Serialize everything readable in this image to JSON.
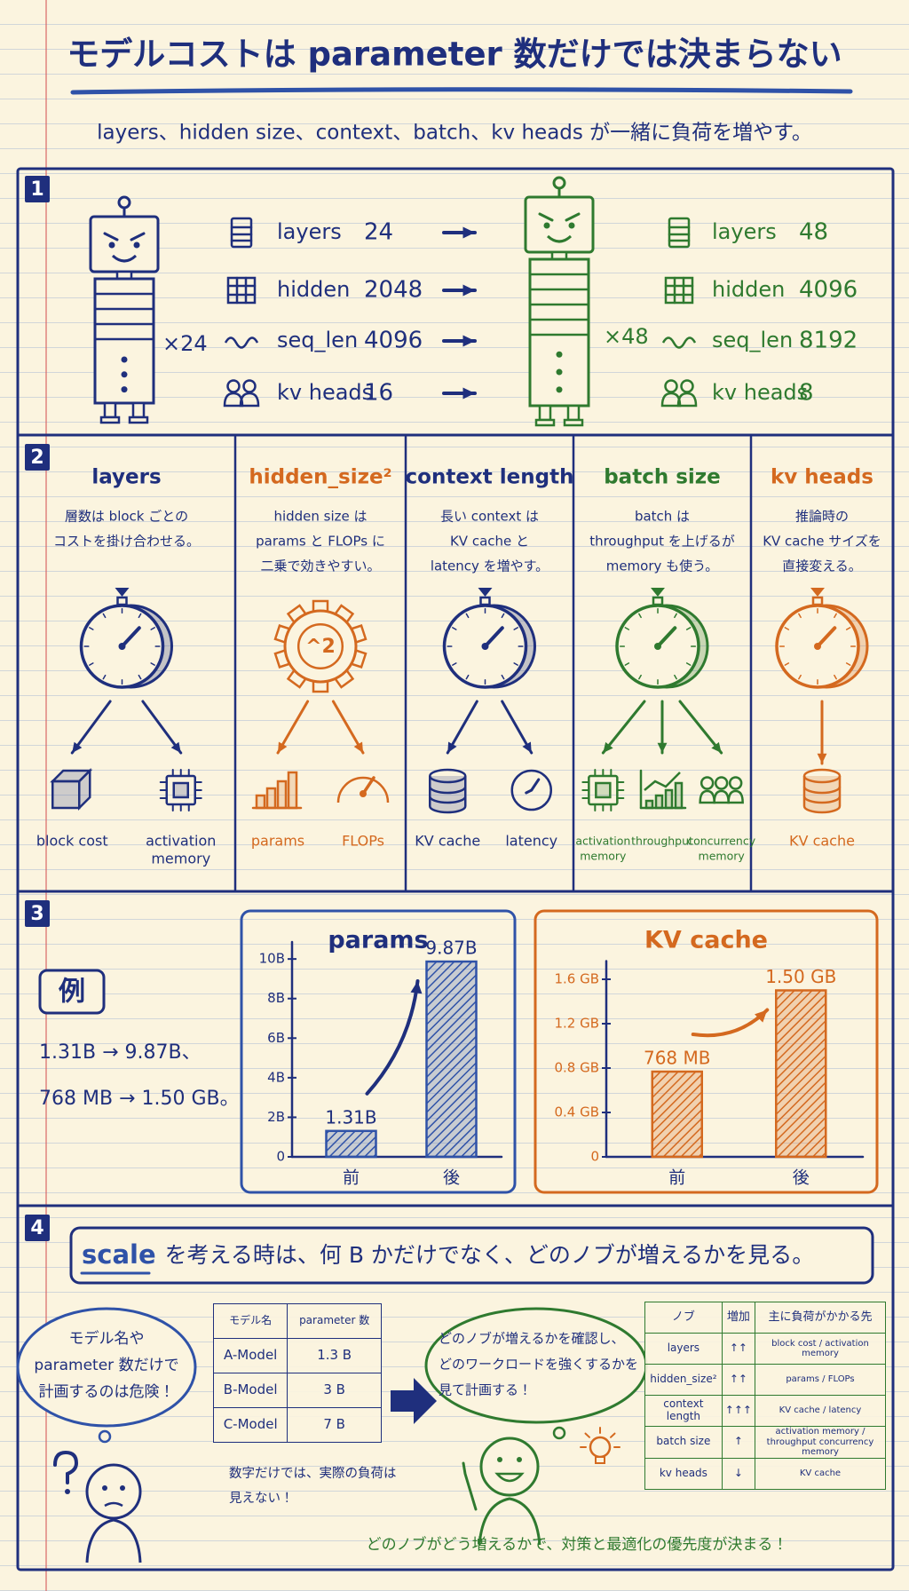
{
  "header": {
    "title": "モデルコストは parameter 数だけでは決まらない",
    "subtitle": "layers、hidden size、context、batch、kv heads が一緒に負荷を増やす。"
  },
  "sections": [
    {
      "number": "1",
      "before": {
        "color": "#1f2f7d",
        "multiplier": "×24",
        "rows": [
          [
            "layers",
            24
          ],
          [
            "hidden",
            2048
          ],
          [
            "seq_len",
            4096
          ],
          [
            "kv heads",
            16
          ]
        ]
      },
      "after": {
        "color": "#2f7a2f",
        "multiplier": "×48",
        "rows": [
          [
            "layers",
            48
          ],
          [
            "hidden",
            4096
          ],
          [
            "seq_len",
            8192
          ],
          [
            "kv heads",
            8
          ]
        ]
      }
    },
    {
      "number": "2",
      "columns": [
        {
          "title": "layers",
          "color": "#1f2f7d",
          "description": [
            "層数は block ごとの",
            "コストを掛け合わせる。"
          ],
          "items": [
            [
              "block cost"
            ],
            [
              "activation",
              "memory"
            ]
          ]
        },
        {
          "title": "hidden_size²",
          "color": "#d4691f",
          "icon_text": "^2",
          "description": [
            "hidden size は",
            "params と FLOPs に",
            "二乗で効きやすい。"
          ],
          "items": [
            [
              "params"
            ],
            [
              "FLOPs"
            ]
          ]
        },
        {
          "title": "context length",
          "color": "#1f2f7d",
          "description": [
            "長い context は",
            "KV cache と",
            "latency を増やす。"
          ],
          "items": [
            [
              "KV cache"
            ],
            [
              "latency"
            ]
          ]
        },
        {
          "title": "batch size",
          "color": "#2f7a2f",
          "description": [
            "batch は",
            "throughput を上げるが",
            "memory も使う。"
          ],
          "items": [
            [
              "activation",
              "memory"
            ],
            [
              "throughput"
            ],
            [
              "concurrency",
              "memory"
            ]
          ]
        },
        {
          "title": "kv heads",
          "color": "#d4691f",
          "description": [
            "推論時の",
            "KV cache サイズを",
            "直接変える。"
          ],
          "items": [
            [
              "KV cache"
            ]
          ]
        }
      ]
    },
    {
      "number": "3",
      "example": {
        "label": "例",
        "lines": [
          "1.31B → 9.87B、",
          "768 MB → 1.50 GB。"
        ]
      },
      "charts": [
        {
          "type": "bar",
          "title": "params",
          "color": "#2f52a8",
          "categories": [
            "前",
            "後"
          ],
          "values": [
            1.31,
            9.87
          ],
          "value_labels": [
            "1.31B",
            "9.87B"
          ],
          "ylim": [
            0,
            10.5
          ],
          "yticks": [
            0,
            {
              "value": 2,
              "label": "2B"
            },
            {
              "value": 4,
              "label": "4B"
            },
            {
              "value": 6,
              "label": "6B"
            },
            {
              "value": 8,
              "label": "8B"
            },
            {
              "value": 10,
              "label": "10B"
            }
          ]
        },
        {
          "type": "bar",
          "title": "KV cache",
          "color": "#d4691f",
          "categories": [
            "前",
            "後"
          ],
          "values": [
            0.768,
            1.5
          ],
          "value_labels": [
            "768 MB",
            "1.50 GB"
          ],
          "ylim": [
            0,
            1.7
          ],
          "yticks": [
            0,
            {
              "value": 0.4,
              "label": "0.4 GB"
            },
            {
              "value": 0.8,
              "label": "0.8 GB"
            },
            {
              "value": 1.2,
              "label": "1.2 GB"
            },
            {
              "value": 1.6,
              "label": "1.6 GB"
            }
          ]
        }
      ]
    },
    {
      "number": "4",
      "heading": {
        "keyword": "scale",
        "text": "を考える時は、何 B かだけでなく、どのノブが増えるかを見る。"
      },
      "warning": [
        "モデル名や",
        "parameter 数だけで",
        "計画するのは危険！"
      ],
      "model_table": {
        "header": [
          "モデル名",
          "parameter 数"
        ],
        "rows": [
          [
            "A-Model",
            "1.3 B"
          ],
          [
            "B-Model",
            "3 B"
          ],
          [
            "C-Model",
            "7 B"
          ]
        ]
      },
      "note": [
        "数字だけでは、実際の負荷は",
        "見えない！"
      ],
      "advice": [
        "どのノブが増えるかを確認し、",
        "どのワークロードを強くするかを",
        "見て計画する！"
      ],
      "knob_table": {
        "header": [
          "ノブ",
          "増加",
          "主に負荷がかかる先"
        ],
        "rows": [
          [
            "layers",
            "↑↑",
            "block cost / activation memory"
          ],
          [
            "hidden_size²",
            "↑↑",
            "params / FLOPs"
          ],
          [
            "context length",
            "↑↑↑",
            "KV cache / latency"
          ],
          [
            "batch size",
            "↑",
            "activation memory / throughput concurrency memory"
          ],
          [
            "kv heads",
            "↓",
            "KV cache"
          ]
        ]
      },
      "conclusion": "どのノブがどう増えるかで、対策と最適化の優先度が決まる！"
    }
  ]
}
